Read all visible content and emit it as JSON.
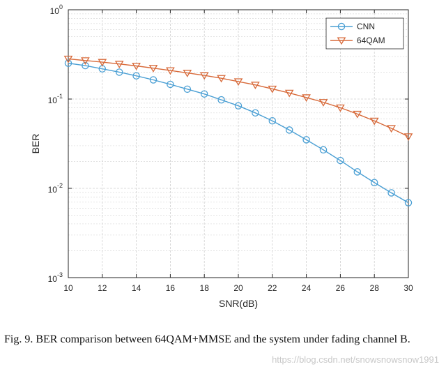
{
  "chart_data": {
    "type": "line",
    "xlabel": "SNR(dB)",
    "ylabel": "BER",
    "yscale": "log",
    "xlim": [
      10,
      30
    ],
    "ylim": [
      0.001,
      1
    ],
    "grid": true,
    "legend_position": "top-right",
    "x": [
      10,
      11,
      12,
      13,
      14,
      15,
      16,
      17,
      18,
      19,
      20,
      21,
      22,
      23,
      24,
      25,
      26,
      27,
      28,
      29,
      30
    ],
    "x_ticks": [
      "10",
      "12",
      "14",
      "16",
      "18",
      "20",
      "22",
      "24",
      "26",
      "28",
      "30"
    ],
    "y_ticks": [
      {
        "base": "10",
        "exp": "0"
      },
      {
        "base": "10",
        "exp": "-1"
      },
      {
        "base": "10",
        "exp": "-2"
      },
      {
        "base": "10",
        "exp": "-3"
      }
    ],
    "series": [
      {
        "name": "CNN",
        "color": "#4a9fd4",
        "marker": "circle",
        "values": [
          0.252,
          0.237,
          0.218,
          0.2,
          0.182,
          0.164,
          0.146,
          0.129,
          0.114,
          0.098,
          0.084,
          0.07,
          0.057,
          0.045,
          0.035,
          0.027,
          0.0205,
          0.0153,
          0.0116,
          0.0089,
          0.0069
        ]
      },
      {
        "name": "64QAM",
        "color": "#d86a3a",
        "marker": "triangle-down",
        "values": [
          0.282,
          0.27,
          0.259,
          0.247,
          0.235,
          0.222,
          0.209,
          0.196,
          0.184,
          0.171,
          0.157,
          0.144,
          0.13,
          0.117,
          0.104,
          0.092,
          0.08,
          0.068,
          0.057,
          0.047,
          0.038
        ]
      }
    ]
  },
  "caption": "Fig. 9.   BER comparison between 64QAM+MMSE and the system under fading channel B.",
  "watermark": "https://blog.csdn.net/snowsnowsnow1991"
}
